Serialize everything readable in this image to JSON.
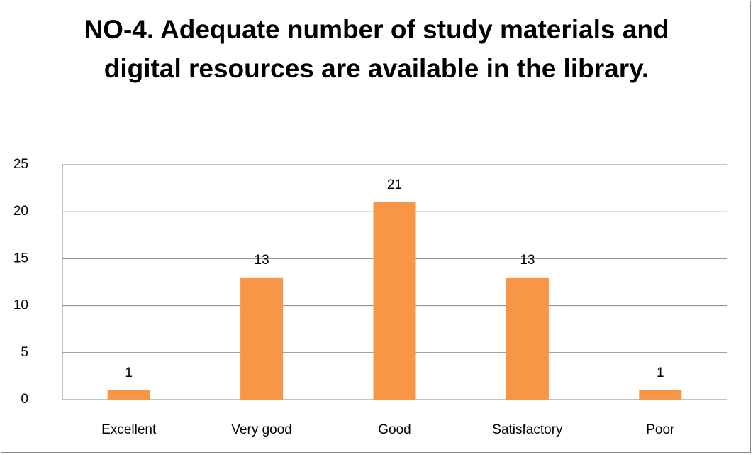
{
  "chart_data": {
    "type": "bar",
    "title": "NO-4. Adequate number of study materials and digital resources are available in the library.",
    "categories": [
      "Excellent",
      "Very good",
      "Good",
      "Satisfactory",
      "Poor"
    ],
    "values": [
      1,
      13,
      21,
      13,
      1
    ],
    "color": "#f79646",
    "ylim": [
      0,
      25
    ],
    "yticks": [
      0,
      5,
      10,
      15,
      20,
      25
    ],
    "grid": true,
    "data_labels": true
  }
}
